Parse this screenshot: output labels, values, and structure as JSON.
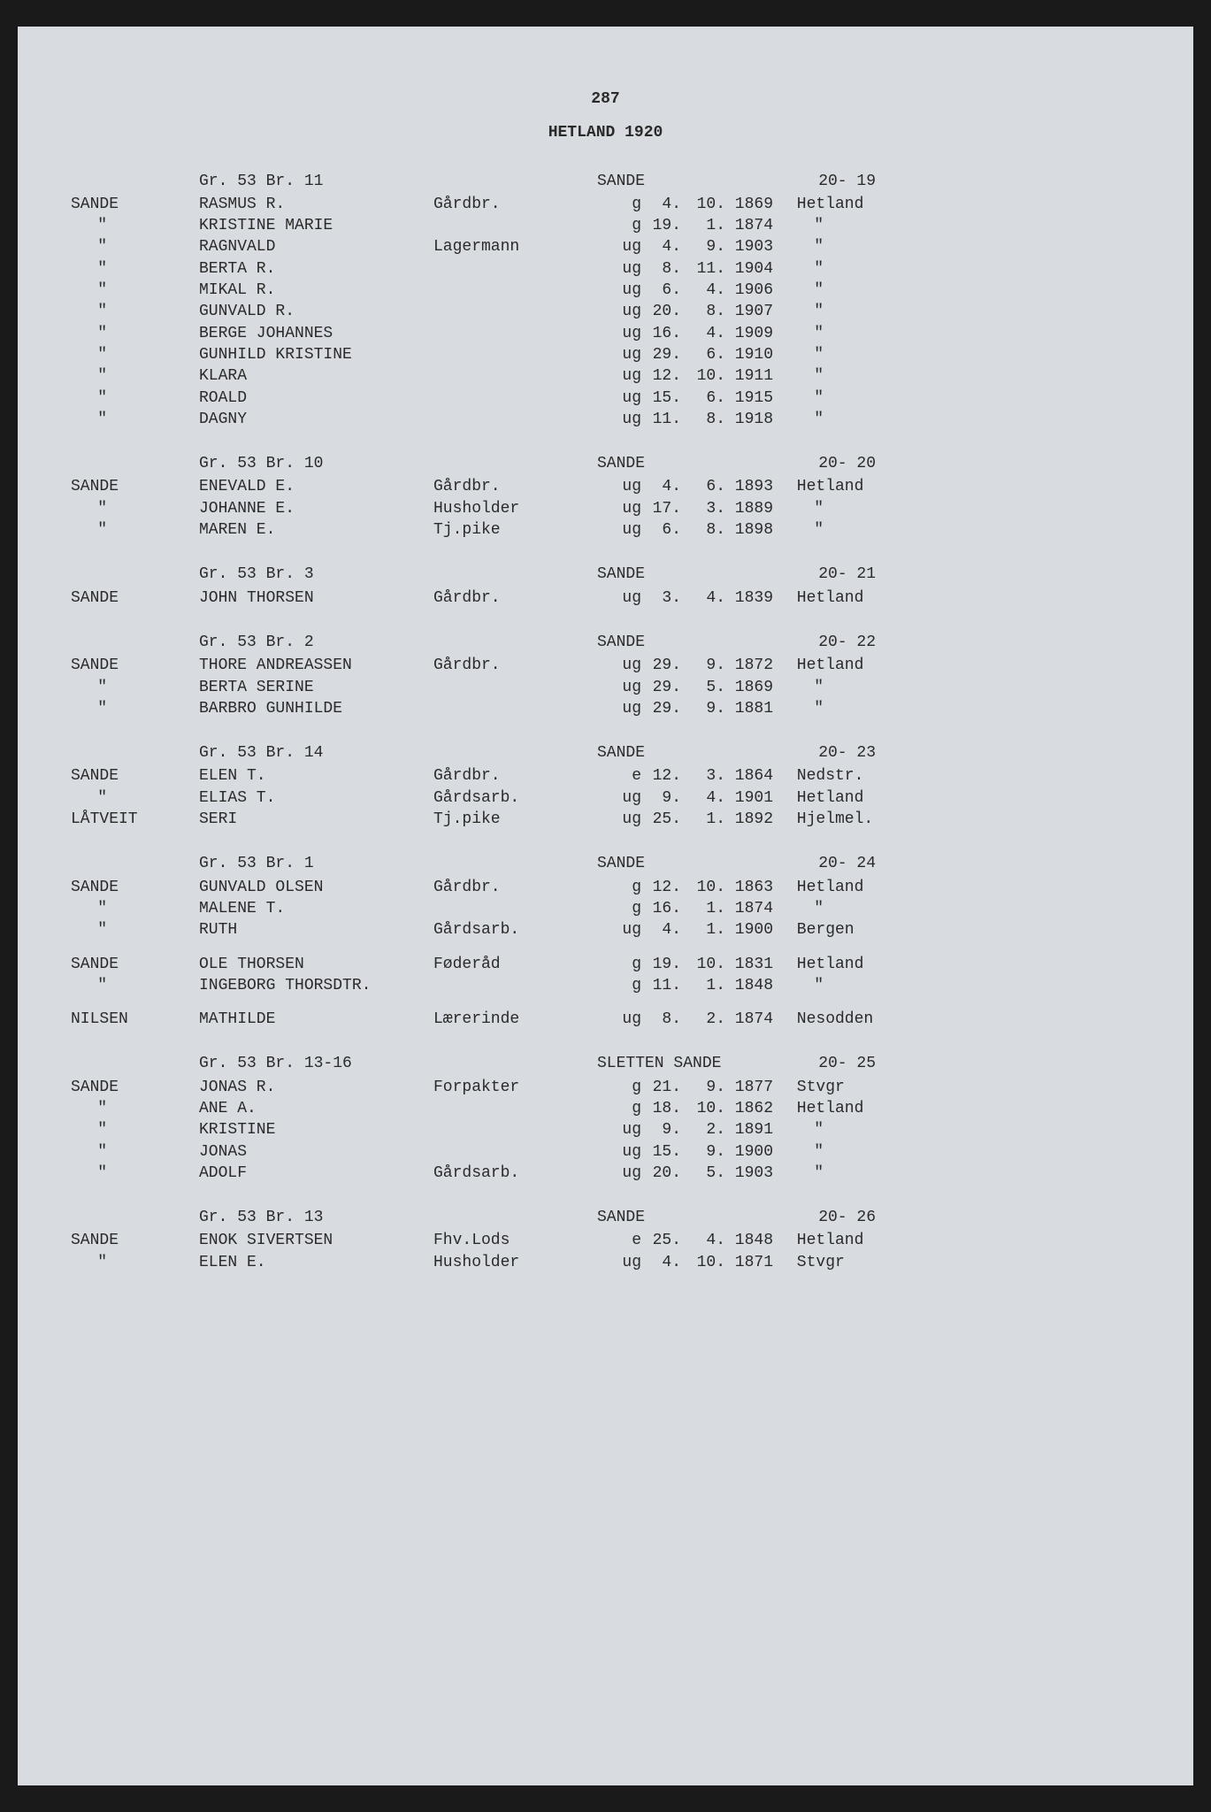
{
  "page_number": "287",
  "page_title": "HETLAND 1920",
  "groups": [
    {
      "gr": "Gr. 53 Br. 11",
      "location": "SANDE",
      "ref": "20- 19",
      "rows": [
        {
          "surname": "SANDE",
          "name": "RASMUS R.",
          "occupation": "Gårdbr.",
          "status": "g",
          "day": "4.",
          "month": "10.",
          "year": "1869",
          "place": "Hetland"
        },
        {
          "surname": "\"",
          "name": "KRISTINE MARIE",
          "occupation": "",
          "status": "g",
          "day": "19.",
          "month": "1.",
          "year": "1874",
          "place": "\""
        },
        {
          "surname": "\"",
          "name": "RAGNVALD",
          "occupation": "Lagermann",
          "status": "ug",
          "day": "4.",
          "month": "9.",
          "year": "1903",
          "place": "\""
        },
        {
          "surname": "\"",
          "name": "BERTA R.",
          "occupation": "",
          "status": "ug",
          "day": "8.",
          "month": "11.",
          "year": "1904",
          "place": "\""
        },
        {
          "surname": "\"",
          "name": "MIKAL R.",
          "occupation": "",
          "status": "ug",
          "day": "6.",
          "month": "4.",
          "year": "1906",
          "place": "\""
        },
        {
          "surname": "\"",
          "name": "GUNVALD R.",
          "occupation": "",
          "status": "ug",
          "day": "20.",
          "month": "8.",
          "year": "1907",
          "place": "\""
        },
        {
          "surname": "\"",
          "name": "BERGE JOHANNES",
          "occupation": "",
          "status": "ug",
          "day": "16.",
          "month": "4.",
          "year": "1909",
          "place": "\""
        },
        {
          "surname": "\"",
          "name": "GUNHILD KRISTINE",
          "occupation": "",
          "status": "ug",
          "day": "29.",
          "month": "6.",
          "year": "1910",
          "place": "\""
        },
        {
          "surname": "\"",
          "name": "KLARA",
          "occupation": "",
          "status": "ug",
          "day": "12.",
          "month": "10.",
          "year": "1911",
          "place": "\""
        },
        {
          "surname": "\"",
          "name": "ROALD",
          "occupation": "",
          "status": "ug",
          "day": "15.",
          "month": "6.",
          "year": "1915",
          "place": "\""
        },
        {
          "surname": "\"",
          "name": "DAGNY",
          "occupation": "",
          "status": "ug",
          "day": "11.",
          "month": "8.",
          "year": "1918",
          "place": "\""
        }
      ]
    },
    {
      "gr": "Gr. 53 Br. 10",
      "location": "SANDE",
      "ref": "20- 20",
      "rows": [
        {
          "surname": "SANDE",
          "name": "ENEVALD E.",
          "occupation": "Gårdbr.",
          "status": "ug",
          "day": "4.",
          "month": "6.",
          "year": "1893",
          "place": "Hetland"
        },
        {
          "surname": "\"",
          "name": "JOHANNE E.",
          "occupation": "Husholder",
          "status": "ug",
          "day": "17.",
          "month": "3.",
          "year": "1889",
          "place": "\""
        },
        {
          "surname": "\"",
          "name": "MAREN E.",
          "occupation": "Tj.pike",
          "status": "ug",
          "day": "6.",
          "month": "8.",
          "year": "1898",
          "place": "\""
        }
      ]
    },
    {
      "gr": "Gr. 53 Br. 3",
      "location": "SANDE",
      "ref": "20- 21",
      "rows": [
        {
          "surname": "SANDE",
          "name": "JOHN THORSEN",
          "occupation": "Gårdbr.",
          "status": "ug",
          "day": "3.",
          "month": "4.",
          "year": "1839",
          "place": "Hetland"
        }
      ]
    },
    {
      "gr": "Gr. 53 Br. 2",
      "location": "SANDE",
      "ref": "20- 22",
      "rows": [
        {
          "surname": "SANDE",
          "name": "THORE ANDREASSEN",
          "occupation": "Gårdbr.",
          "status": "ug",
          "day": "29.",
          "month": "9.",
          "year": "1872",
          "place": "Hetland"
        },
        {
          "surname": "\"",
          "name": "BERTA SERINE",
          "occupation": "",
          "status": "ug",
          "day": "29.",
          "month": "5.",
          "year": "1869",
          "place": "\""
        },
        {
          "surname": "\"",
          "name": "BARBRO GUNHILDE",
          "occupation": "",
          "status": "ug",
          "day": "29.",
          "month": "9.",
          "year": "1881",
          "place": "\""
        }
      ]
    },
    {
      "gr": "Gr. 53 Br. 14",
      "location": "SANDE",
      "ref": "20- 23",
      "rows": [
        {
          "surname": "SANDE",
          "name": "ELEN T.",
          "occupation": "Gårdbr.",
          "status": "e",
          "day": "12.",
          "month": "3.",
          "year": "1864",
          "place": "Nedstr."
        },
        {
          "surname": "\"",
          "name": "ELIAS T.",
          "occupation": "Gårdsarb.",
          "status": "ug",
          "day": "9.",
          "month": "4.",
          "year": "1901",
          "place": "Hetland"
        },
        {
          "surname": "LÅTVEIT",
          "name": "SERI",
          "occupation": "Tj.pike",
          "status": "ug",
          "day": "25.",
          "month": "1.",
          "year": "1892",
          "place": "Hjelmel."
        }
      ]
    },
    {
      "gr": "Gr. 53 Br. 1",
      "location": "SANDE",
      "ref": "20- 24",
      "rows": [
        {
          "surname": "SANDE",
          "name": "GUNVALD OLSEN",
          "occupation": "Gårdbr.",
          "status": "g",
          "day": "12.",
          "month": "10.",
          "year": "1863",
          "place": "Hetland"
        },
        {
          "surname": "\"",
          "name": "MALENE T.",
          "occupation": "",
          "status": "g",
          "day": "16.",
          "month": "1.",
          "year": "1874",
          "place": "\""
        },
        {
          "surname": "\"",
          "name": "RUTH",
          "occupation": "Gårdsarb.",
          "status": "ug",
          "day": "4.",
          "month": "1.",
          "year": "1900",
          "place": "Bergen"
        },
        {
          "surname": "SANDE",
          "name": "OLE THORSEN",
          "occupation": "Føderåd",
          "status": "g",
          "day": "19.",
          "month": "10.",
          "year": "1831",
          "place": "Hetland"
        },
        {
          "surname": "\"",
          "name": "INGEBORG THORSDTR.",
          "occupation": "",
          "status": "g",
          "day": "11.",
          "month": "1.",
          "year": "1848",
          "place": "\""
        },
        {
          "surname": "NILSEN",
          "name": "MATHILDE",
          "occupation": "Lærerinde",
          "status": "ug",
          "day": "8.",
          "month": "2.",
          "year": "1874",
          "place": "Nesodden"
        }
      ],
      "gaps_after": [
        2,
        4
      ]
    },
    {
      "gr": "Gr. 53 Br. 13-16",
      "location": "SLETTEN SANDE",
      "ref": "20- 25",
      "rows": [
        {
          "surname": "SANDE",
          "name": "JONAS R.",
          "occupation": "Forpakter",
          "status": "g",
          "day": "21.",
          "month": "9.",
          "year": "1877",
          "place": "Stvgr"
        },
        {
          "surname": "\"",
          "name": "ANE A.",
          "occupation": "",
          "status": "g",
          "day": "18.",
          "month": "10.",
          "year": "1862",
          "place": "Hetland"
        },
        {
          "surname": "\"",
          "name": "KRISTINE",
          "occupation": "",
          "status": "ug",
          "day": "9.",
          "month": "2.",
          "year": "1891",
          "place": "\""
        },
        {
          "surname": "\"",
          "name": "JONAS",
          "occupation": "",
          "status": "ug",
          "day": "15.",
          "month": "9.",
          "year": "1900",
          "place": "\""
        },
        {
          "surname": "\"",
          "name": "ADOLF",
          "occupation": "Gårdsarb.",
          "status": "ug",
          "day": "20.",
          "month": "5.",
          "year": "1903",
          "place": "\""
        }
      ]
    },
    {
      "gr": "Gr. 53 Br. 13",
      "location": "SANDE",
      "ref": "20- 26",
      "rows": [
        {
          "surname": "SANDE",
          "name": "ENOK SIVERTSEN",
          "occupation": "Fhv.Lods",
          "status": "e",
          "day": "25.",
          "month": "4.",
          "year": "1848",
          "place": "Hetland"
        },
        {
          "surname": "\"",
          "name": "ELEN E.",
          "occupation": "Husholder",
          "status": "ug",
          "day": "4.",
          "month": "10.",
          "year": "1871",
          "place": "Stvgr"
        }
      ]
    }
  ]
}
